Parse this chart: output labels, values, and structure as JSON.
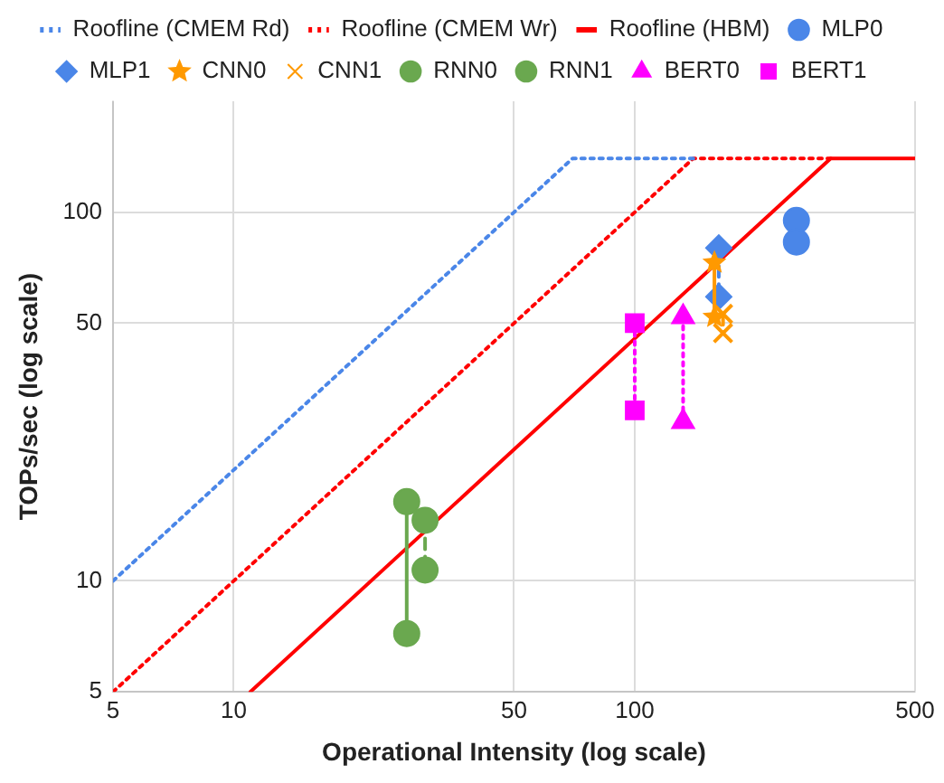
{
  "chart_data": {
    "type": "line",
    "xlabel": "Operational Intensity (log scale)",
    "ylabel": "TOPs/sec (log scale)",
    "log": "xy",
    "grid": true,
    "legend": "top",
    "xlim": [
      5,
      500
    ],
    "xticks": [
      5,
      10,
      50,
      100,
      500
    ],
    "ylim": [
      5,
      200
    ],
    "yticks": [
      5,
      10,
      50,
      100
    ],
    "series": [
      {
        "name": "Roofline (CMEM Rd)",
        "color": "#4a86e8",
        "marker": "none",
        "line_style": "dotted",
        "x": [
          5,
          70,
          140
        ],
        "values": [
          10,
          140,
          140
        ]
      },
      {
        "name": "Roofline (CMEM Wr)",
        "color": "#ff0000",
        "marker": "none",
        "line_style": "dotted",
        "x": [
          5,
          140,
          308
        ],
        "values": [
          5,
          140,
          140
        ]
      },
      {
        "name": "Roofline (HBM)",
        "color": "#ff0000",
        "marker": "none",
        "line_style": "solid",
        "x": [
          11,
          308,
          500
        ],
        "values": [
          5,
          140,
          140
        ]
      },
      {
        "name": "MLP0",
        "type": "scatter",
        "color": "#4a86e8",
        "marker": "circle",
        "x": [
          253,
          253
        ],
        "values": [
          95,
          83
        ]
      },
      {
        "name": "MLP1",
        "color": "#4a86e8",
        "marker": "diamond",
        "line_style": "dashed",
        "x": [
          162,
          162
        ],
        "values": [
          80,
          59
        ]
      },
      {
        "name": "CNN0",
        "color": "#ff9900",
        "marker": "star",
        "line_style": "solid",
        "x": [
          158,
          158
        ],
        "values": [
          73,
          52
        ]
      },
      {
        "name": "CNN1",
        "color": "#ff9900",
        "marker": "cross",
        "line_style": "dashed",
        "x": [
          166,
          166
        ],
        "values": [
          53,
          47
        ]
      },
      {
        "name": "RNN0",
        "color": "#6aa84f",
        "marker": "circle",
        "line_style": "dashed",
        "x": [
          30,
          30
        ],
        "values": [
          14.6,
          10.7
        ]
      },
      {
        "name": "RNN1",
        "color": "#6aa84f",
        "marker": "circle",
        "line_style": "solid",
        "x": [
          27,
          27
        ],
        "values": [
          16.4,
          7.2
        ]
      },
      {
        "name": "BERT0",
        "color": "#ff00ff",
        "marker": "triangle",
        "line_style": "dotted",
        "x": [
          132,
          132
        ],
        "values": [
          52,
          27
        ]
      },
      {
        "name": "BERT1",
        "color": "#ff00ff",
        "marker": "square",
        "line_style": "dotted",
        "x": [
          100,
          100
        ],
        "values": [
          50,
          29
        ]
      }
    ]
  }
}
